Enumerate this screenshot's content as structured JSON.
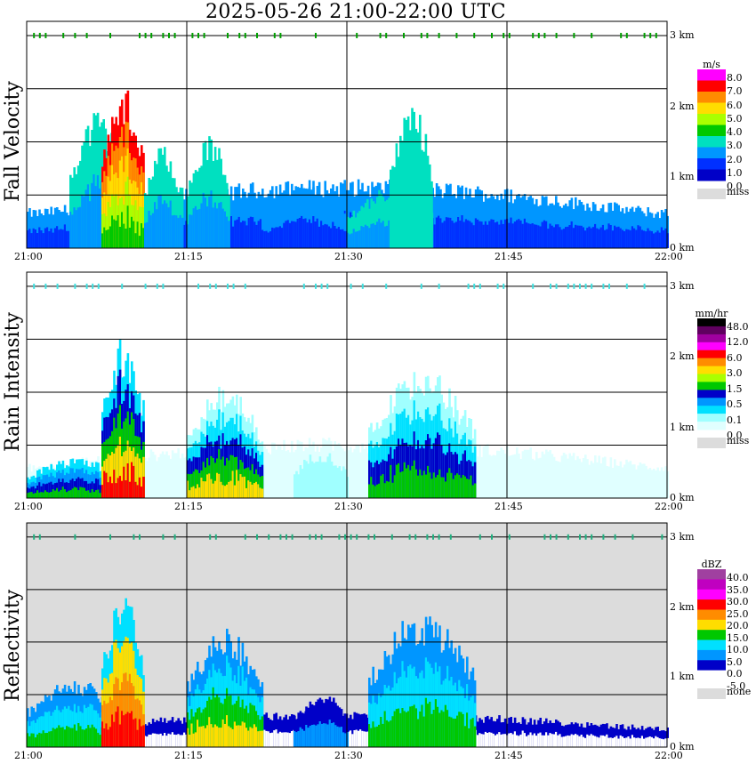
{
  "title": "2025-05-26   21:00-22:00 UTC",
  "chart_data": [
    {
      "type": "heatmap",
      "name": "Fall Velocity",
      "ylabel": "Fall Velocity",
      "x_ticks": [
        "21:00",
        "21:15",
        "21:30",
        "21:45",
        "22:00"
      ],
      "y_ticks": [
        "0 km",
        "1 km",
        "2 km",
        "3 km"
      ],
      "ylim_km": [
        0,
        3.2
      ],
      "grid": true,
      "background": "#ffffff",
      "colorbar": {
        "unit": "m/s",
        "labels": [
          "8.0",
          "7.0",
          "6.0",
          "5.0",
          "4.0",
          "3.0",
          "2.0",
          "1.0",
          "0.0",
          "miss"
        ],
        "colors": [
          "#ff00ff",
          "#ff0000",
          "#ff8c00",
          "#ffdd00",
          "#aaff00",
          "#00c800",
          "#00e0c0",
          "#0096ff",
          "#0030ff",
          "#0000c8"
        ],
        "miss_color": "#dcdcdc"
      },
      "features": [
        {
          "t0": 0,
          "t1": 60,
          "h": 0.85,
          "lvl": [
            7,
            8
          ]
        },
        {
          "t0": 4,
          "t1": 9,
          "h": 1.7,
          "lvl": [
            6,
            7
          ]
        },
        {
          "t0": 7,
          "t1": 11,
          "h": 2.0,
          "lvl": [
            1,
            2,
            3,
            4,
            5
          ]
        },
        {
          "t0": 11,
          "t1": 14.5,
          "h": 1.3,
          "lvl": [
            6,
            7
          ]
        },
        {
          "t0": 15,
          "t1": 19,
          "h": 1.4,
          "lvl": [
            6,
            7
          ]
        },
        {
          "t0": 22,
          "t1": 30,
          "h": 0.8,
          "lvl": [
            7,
            8
          ]
        },
        {
          "t0": 30,
          "t1": 38,
          "h": 0.75,
          "lvl": [
            6,
            7
          ]
        },
        {
          "t0": 34,
          "t1": 38,
          "h": 1.8,
          "lvl": [
            6
          ]
        }
      ],
      "strip_km": 3.0,
      "strip_color": "#00a000"
    },
    {
      "type": "heatmap",
      "name": "Rain Intensity",
      "ylabel": "Rain Intensity",
      "x_ticks": [
        "21:00",
        "21:15",
        "21:30",
        "21:45",
        "22:00"
      ],
      "y_ticks": [
        "0 km",
        "1 km",
        "2 km",
        "3 km"
      ],
      "ylim_km": [
        0,
        3.2
      ],
      "grid": true,
      "background": "#ffffff",
      "colorbar": {
        "unit": "mm/hr",
        "labels": [
          "48.0",
          "12.0",
          "6.0",
          "3.0",
          "1.5",
          "0.5",
          "0.1",
          "0.0",
          "miss"
        ],
        "colors": [
          "#000000",
          "#600060",
          "#a000a0",
          "#ff00ff",
          "#ff0000",
          "#ff8c00",
          "#ffdd00",
          "#aaff00",
          "#00c800",
          "#0000c8",
          "#0096ff",
          "#00e0ff",
          "#a0ffff",
          "#e0ffff"
        ],
        "miss_color": "#dcdcdc"
      },
      "features": [
        {
          "t0": 0,
          "t1": 60,
          "h": 0.75,
          "lvl": [
            13
          ]
        },
        {
          "t0": 0,
          "t1": 9,
          "h": 0.5,
          "lvl": [
            11,
            10,
            9,
            8
          ]
        },
        {
          "t0": 7,
          "t1": 11,
          "h": 2.0,
          "lvl": [
            11,
            9,
            8,
            6,
            4
          ]
        },
        {
          "t0": 15,
          "t1": 22,
          "h": 1.4,
          "lvl": [
            12,
            11,
            9,
            8,
            6
          ]
        },
        {
          "t0": 25,
          "t1": 30,
          "h": 0.6,
          "lvl": [
            12
          ]
        },
        {
          "t0": 32,
          "t1": 42,
          "h": 1.6,
          "lvl": [
            12,
            11,
            9,
            8
          ]
        }
      ],
      "strip_km": 3.0,
      "strip_color": "#40e0e0"
    },
    {
      "type": "heatmap",
      "name": "Reflectivity",
      "ylabel": "Reflectivity",
      "x_ticks": [
        "21:00",
        "21:15",
        "21:30",
        "21:45",
        "22:00"
      ],
      "y_ticks": [
        "0 km",
        "1 km",
        "2 km",
        "3 km"
      ],
      "ylim_km": [
        0,
        3.2
      ],
      "grid": true,
      "background": "#dcdcdc",
      "colorbar": {
        "unit": "dBZ",
        "labels": [
          "40.0",
          "35.0",
          "30.0",
          "25.0",
          "20.0",
          "15.0",
          "10.0",
          "5.0",
          "0.0",
          "-5.0",
          "none"
        ],
        "colors": [
          "#a040a0",
          "#c000c0",
          "#ff00ff",
          "#ff0000",
          "#ff8c00",
          "#ffdd00",
          "#00c800",
          "#00e0ff",
          "#0096ff",
          "#0000c8",
          "#ffffff"
        ],
        "miss_color": "#dcdcdc"
      },
      "features": [
        {
          "t0": 0,
          "t1": 60,
          "h": 0.45,
          "lvl": [
            9,
            10
          ]
        },
        {
          "t0": 0,
          "t1": 9,
          "h": 0.85,
          "lvl": [
            8,
            7,
            6
          ]
        },
        {
          "t0": 7,
          "t1": 11,
          "h": 2.0,
          "lvl": [
            7,
            5,
            4,
            3
          ]
        },
        {
          "t0": 15,
          "t1": 22,
          "h": 1.5,
          "lvl": [
            8,
            7,
            6,
            5
          ]
        },
        {
          "t0": 25,
          "t1": 30,
          "h": 0.7,
          "lvl": [
            9,
            8
          ]
        },
        {
          "t0": 32,
          "t1": 42,
          "h": 1.7,
          "lvl": [
            8,
            7,
            6
          ]
        }
      ],
      "strip_km": 3.0,
      "strip_color": "#20b080"
    }
  ]
}
